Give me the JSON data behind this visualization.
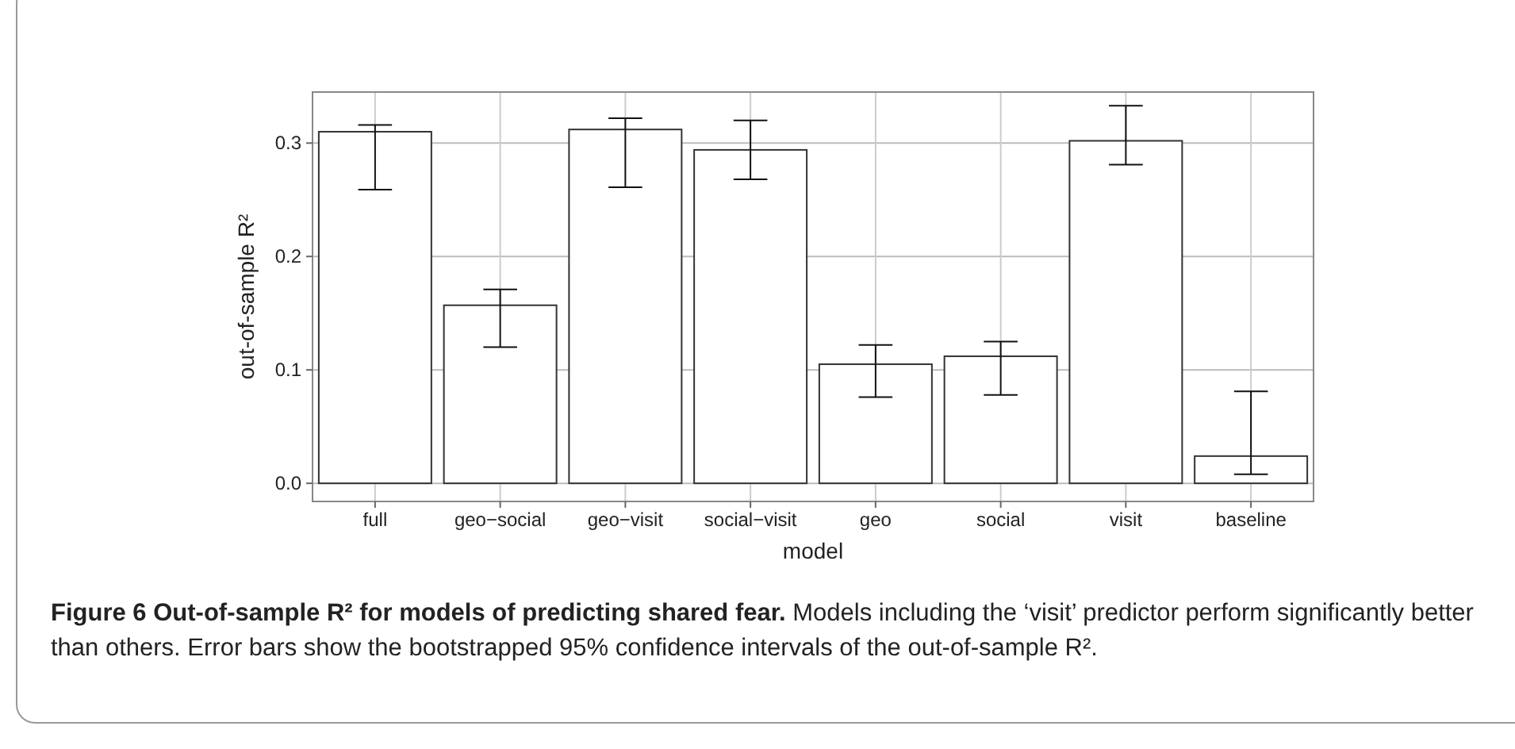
{
  "chart_data": {
    "type": "bar",
    "title": "Figure 6  Out-of-sample R² for models of predicting shared fear.",
    "xlabel": "model",
    "ylabel": "out-of-sample R²",
    "categories": [
      "full",
      "geo−social",
      "geo−visit",
      "social−visit",
      "geo",
      "social",
      "visit",
      "baseline"
    ],
    "values": [
      0.31,
      0.157,
      0.312,
      0.294,
      0.105,
      0.112,
      0.302,
      0.024
    ],
    "errors": [
      [
        0.259,
        0.316
      ],
      [
        0.12,
        0.171
      ],
      [
        0.261,
        0.322
      ],
      [
        0.268,
        0.32
      ],
      [
        0.076,
        0.122
      ],
      [
        0.078,
        0.125
      ],
      [
        0.281,
        0.333
      ],
      [
        0.008,
        0.081
      ]
    ],
    "color": "#ffffff",
    "ylim": [
      -0.016,
      0.345
    ],
    "yticks": [
      {
        "value": 0,
        "label": "0.0"
      },
      {
        "value": 0.1,
        "label": "0.1"
      },
      {
        "value": 0.2,
        "label": "0.2"
      },
      {
        "value": 0.3,
        "label": "0.3"
      }
    ],
    "grid": true,
    "annotations": [
      "Models including the ‘visit’ predictor perform significantly better than others. Error bars show the bootstrapped 95% confidence intervals of the out-of-sample R²."
    ]
  }
}
